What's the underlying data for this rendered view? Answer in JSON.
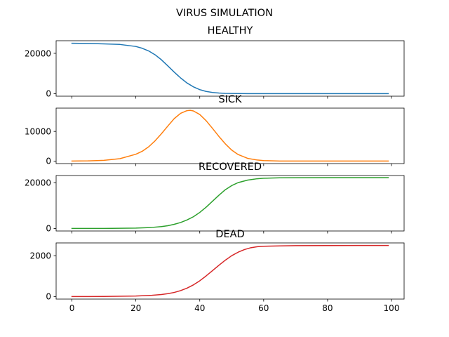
{
  "chart_data": {
    "type": "line",
    "title": "VIRUS SIMULATION",
    "shared_x_ticks": [
      "0",
      "20",
      "40",
      "60",
      "80",
      "100"
    ],
    "x_range": [
      0,
      99
    ],
    "x_lim": [
      -4.95,
      103.95
    ],
    "subplots": [
      {
        "title": "HEALTHY",
        "color": "#1f77b4",
        "ylim": [
          -1250,
          26250
        ],
        "yticks": [
          {
            "value": 0,
            "label": "0"
          },
          {
            "value": 20000,
            "label": "20000"
          }
        ],
        "x": [
          0,
          5,
          10,
          15,
          20,
          22,
          24,
          26,
          28,
          30,
          32,
          34,
          36,
          38,
          40,
          42,
          44,
          46,
          48,
          50,
          55,
          60,
          70,
          80,
          90,
          99
        ],
        "y": [
          25000,
          24900,
          24700,
          24400,
          23400,
          22500,
          21200,
          19300,
          16800,
          13800,
          10700,
          7800,
          5300,
          3400,
          2000,
          1100,
          600,
          300,
          150,
          80,
          30,
          10,
          5,
          5,
          5,
          5
        ]
      },
      {
        "title": "SICK",
        "color": "#ff7f0e",
        "ylim": [
          -850,
          17850
        ],
        "yticks": [
          {
            "value": 0,
            "label": "0"
          },
          {
            "value": 10000,
            "label": "10000"
          }
        ],
        "x": [
          0,
          5,
          10,
          15,
          20,
          22,
          24,
          26,
          28,
          30,
          32,
          34,
          36,
          37,
          38,
          40,
          42,
          44,
          46,
          48,
          50,
          52,
          55,
          58,
          60,
          65,
          70,
          80,
          90,
          99
        ],
        "y": [
          10,
          60,
          250,
          800,
          2300,
          3300,
          4800,
          6800,
          9200,
          11800,
          14300,
          16100,
          17000,
          17100,
          16900,
          15700,
          13600,
          11000,
          8300,
          5800,
          3700,
          2200,
          900,
          350,
          150,
          20,
          5,
          0,
          0,
          0
        ]
      },
      {
        "title": "RECOVERED",
        "color": "#2ca02c",
        "ylim": [
          -1100,
          23100
        ],
        "yticks": [
          {
            "value": 0,
            "label": "0"
          },
          {
            "value": 20000,
            "label": "20000"
          }
        ],
        "x": [
          0,
          10,
          20,
          25,
          28,
          30,
          32,
          34,
          36,
          38,
          40,
          42,
          44,
          46,
          48,
          50,
          52,
          55,
          58,
          60,
          65,
          70,
          80,
          90,
          99
        ],
        "y": [
          0,
          10,
          150,
          450,
          800,
          1200,
          1800,
          2600,
          3700,
          5100,
          7000,
          9300,
          11900,
          14500,
          16900,
          18700,
          20000,
          21100,
          21700,
          21900,
          22100,
          22150,
          22200,
          22200,
          22200
        ]
      },
      {
        "title": "DEAD",
        "color": "#d62728",
        "ylim": [
          -125,
          2625
        ],
        "yticks": [
          {
            "value": 0,
            "label": "0"
          },
          {
            "value": 2000,
            "label": "2000"
          }
        ],
        "x": [
          0,
          10,
          20,
          25,
          28,
          30,
          32,
          34,
          36,
          38,
          40,
          42,
          44,
          46,
          48,
          50,
          52,
          54,
          56,
          58,
          60,
          65,
          70,
          80,
          90,
          99
        ],
        "y": [
          0,
          3,
          25,
          60,
          100,
          140,
          200,
          290,
          410,
          570,
          770,
          1010,
          1270,
          1530,
          1780,
          2000,
          2170,
          2300,
          2390,
          2440,
          2460,
          2480,
          2490,
          2495,
          2500,
          2500
        ]
      }
    ]
  }
}
